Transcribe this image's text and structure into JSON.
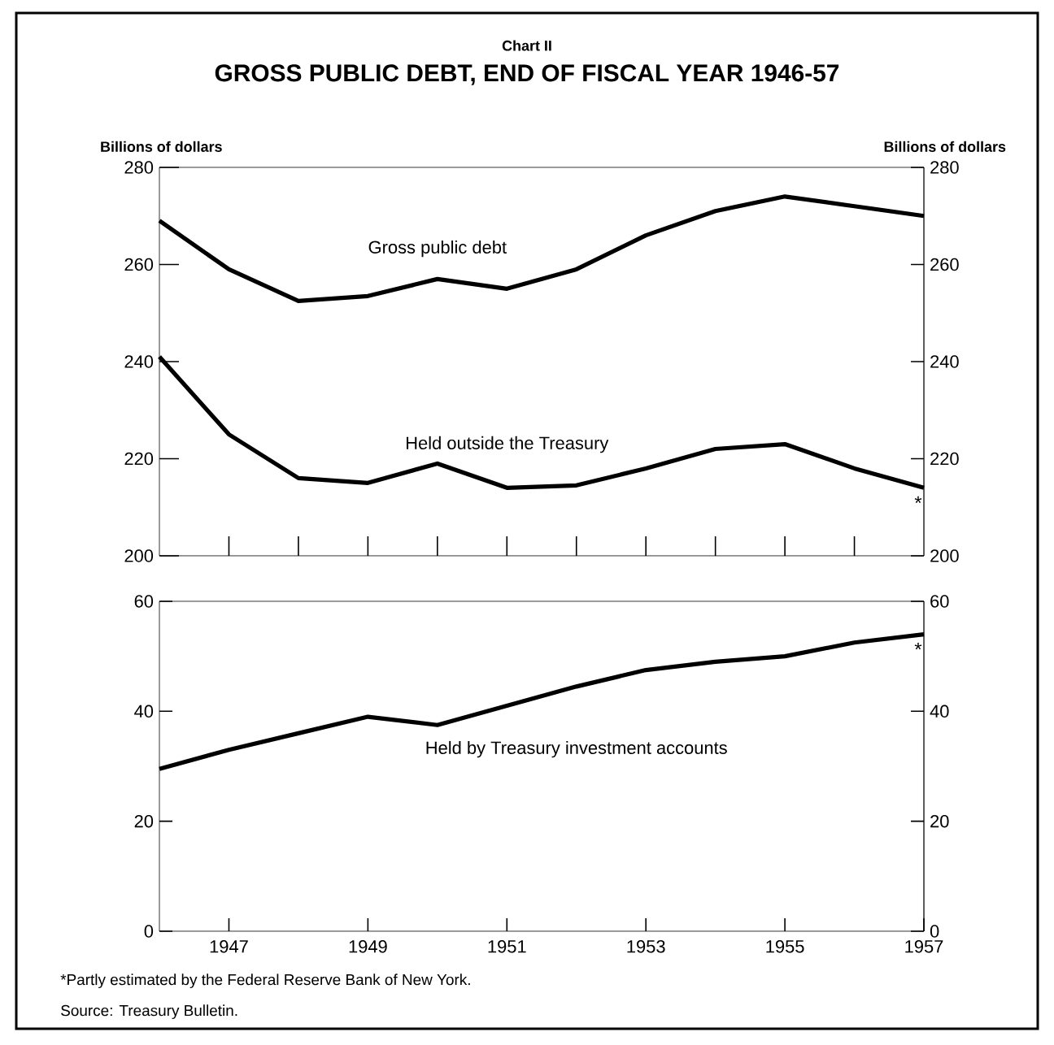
{
  "chart_data": [
    {
      "type": "line",
      "subtitle": "Chart II",
      "title": "GROSS PUBLIC DEBT, END OF FISCAL YEAR 1946-57",
      "ylabel": "Billions of dollars",
      "y2label": "Billions of dollars",
      "x": [
        1946,
        1947,
        1948,
        1949,
        1950,
        1951,
        1952,
        1953,
        1954,
        1955,
        1956,
        1957
      ],
      "series": [
        {
          "name": "Gross public debt",
          "color": "#000000",
          "values": [
            269,
            259,
            252.5,
            253.5,
            257,
            255,
            259,
            266,
            271,
            274,
            272,
            270
          ]
        },
        {
          "name": "Held outside the Treasury",
          "color": "#000000",
          "values": [
            241,
            225,
            216,
            215,
            219,
            214,
            214.5,
            218,
            222,
            223,
            218,
            214
          ]
        }
      ],
      "xlim": [
        1946,
        1957
      ],
      "xticks": [
        {
          "value": 1947,
          "label": null
        },
        {
          "value": 1948,
          "label": null
        },
        {
          "value": 1949,
          "label": null
        },
        {
          "value": 1950,
          "label": null
        },
        {
          "value": 1951,
          "label": null
        },
        {
          "value": 1952,
          "label": null
        },
        {
          "value": 1953,
          "label": null
        },
        {
          "value": 1954,
          "label": null
        },
        {
          "value": 1955,
          "label": null
        },
        {
          "value": 1956,
          "label": null
        }
      ],
      "ylim": [
        200,
        280
      ],
      "yticks": [
        200,
        220,
        240,
        260,
        280
      ],
      "y2lim": [
        200,
        280
      ],
      "y2ticks": [
        200,
        220,
        240,
        260,
        280
      ],
      "tick_labels": "y",
      "grid": false,
      "legend": false,
      "annotations": [
        "*"
      ]
    },
    {
      "type": "line",
      "x": [
        1946,
        1947,
        1948,
        1949,
        1950,
        1951,
        1952,
        1953,
        1954,
        1955,
        1956,
        1957
      ],
      "series": [
        {
          "name": "Held by Treasury investment accounts",
          "color": "#000000",
          "values": [
            29.5,
            33,
            36,
            39,
            37.5,
            41,
            44.5,
            47.5,
            49,
            50,
            52.5,
            54
          ]
        }
      ],
      "xlim": [
        1946,
        1957
      ],
      "xticks": [
        1947,
        1949,
        1951,
        1953,
        1955,
        1957
      ],
      "ylim": [
        0,
        60
      ],
      "yticks": [
        0,
        20,
        40,
        60
      ],
      "y2lim": [
        0,
        60
      ],
      "y2ticks": [
        0,
        20,
        40,
        60
      ],
      "grid": false,
      "legend": false,
      "annotations": [
        "*",
        "*Partly estimated by the Federal Reserve Bank of New York.",
        "Source: Treasury Bulletin."
      ]
    }
  ]
}
